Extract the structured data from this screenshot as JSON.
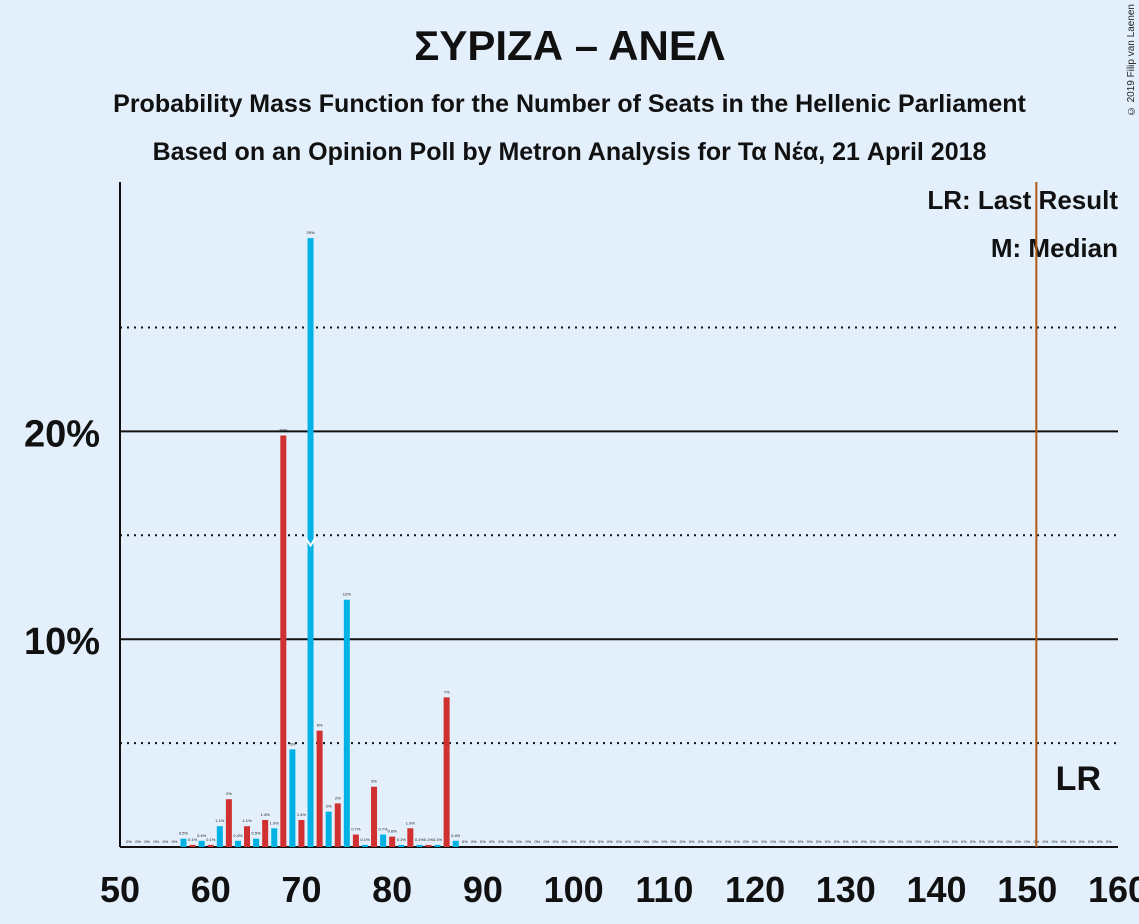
{
  "header": {
    "title": "ΣΥΡΙΖΑ – ΑΝΕΛ",
    "subtitle1": "Probability Mass Function for the Number of Seats in the Hellenic Parliament",
    "subtitle2": "Based on an Opinion Poll by Metron Analysis for Τα Νέα, 21 April 2018",
    "copyright": "© 2019 Filip van Laenen"
  },
  "legend": {
    "last_result": "LR: Last Result",
    "median": "M: Median",
    "lr_marker": "LR"
  },
  "colors": {
    "background": "#e3f0fc",
    "series_a": "#00b2e3",
    "series_b": "#d03030",
    "last_result_line": "#b05a10"
  },
  "chart_data": {
    "type": "bar",
    "xlim": [
      50,
      160
    ],
    "ylim": [
      0,
      32
    ],
    "x_ticks": [
      50,
      60,
      70,
      80,
      90,
      100,
      110,
      120,
      130,
      140,
      150,
      160
    ],
    "y_major": [
      10,
      20
    ],
    "y_tick_labels": [
      "10%",
      "20%"
    ],
    "y_minor_dotted": [
      5,
      15,
      25
    ],
    "last_result": 151,
    "median": 71,
    "median_marker_y": 14.5,
    "x_tick_label_suffix": "",
    "bars": [
      {
        "x": 51,
        "v": 0,
        "label": "0%"
      },
      {
        "x": 52,
        "v": 0,
        "label": "0%"
      },
      {
        "x": 53,
        "v": 0,
        "label": "0%"
      },
      {
        "x": 54,
        "v": 0,
        "label": "0%"
      },
      {
        "x": 55,
        "v": 0,
        "label": "0%"
      },
      {
        "x": 56,
        "v": 0,
        "label": "0%"
      },
      {
        "x": 57,
        "v": 0.4,
        "label": "0.5%"
      },
      {
        "x": 58,
        "v": 0.1,
        "label": "0.1%"
      },
      {
        "x": 59,
        "v": 0.3,
        "label": "0.4%"
      },
      {
        "x": 60,
        "v": 0.1,
        "label": "0.1%"
      },
      {
        "x": 61,
        "v": 1.0,
        "label": "1.1%"
      },
      {
        "x": 62,
        "v": 2.3,
        "label": "2%"
      },
      {
        "x": 63,
        "v": 0.3,
        "label": "0.4%"
      },
      {
        "x": 64,
        "v": 1.0,
        "label": "1.1%"
      },
      {
        "x": 65,
        "v": 0.4,
        "label": "0.5%"
      },
      {
        "x": 66,
        "v": 1.3,
        "label": "1.4%"
      },
      {
        "x": 67,
        "v": 0.9,
        "label": "1.0%"
      },
      {
        "x": 68,
        "v": 19.8,
        "label": "20%"
      },
      {
        "x": 69,
        "v": 4.7,
        "label": "5%"
      },
      {
        "x": 70,
        "v": 1.3,
        "label": "1.4%"
      },
      {
        "x": 71,
        "v": 29.3,
        "label": "29%"
      },
      {
        "x": 72,
        "v": 5.6,
        "label": "6%"
      },
      {
        "x": 73,
        "v": 1.7,
        "label": "2%"
      },
      {
        "x": 74,
        "v": 2.1,
        "label": "2%"
      },
      {
        "x": 75,
        "v": 11.9,
        "label": "12%"
      },
      {
        "x": 76,
        "v": 0.6,
        "label": "0.7%"
      },
      {
        "x": 77,
        "v": 0.1,
        "label": "0.1%"
      },
      {
        "x": 78,
        "v": 2.9,
        "label": "3%"
      },
      {
        "x": 79,
        "v": 0.6,
        "label": "0.7%"
      },
      {
        "x": 80,
        "v": 0.5,
        "label": "0.6%"
      },
      {
        "x": 81,
        "v": 0.1,
        "label": "0.1%"
      },
      {
        "x": 82,
        "v": 0.9,
        "label": "1.0%"
      },
      {
        "x": 83,
        "v": 0.1,
        "label": "0.1%"
      },
      {
        "x": 84,
        "v": 0.1,
        "label": "0.1%"
      },
      {
        "x": 85,
        "v": 0.1,
        "label": "0.1%"
      },
      {
        "x": 86,
        "v": 7.2,
        "label": "7%"
      },
      {
        "x": 87,
        "v": 0.3,
        "label": "0.4%"
      },
      {
        "x": 88,
        "v": 0,
        "label": "0%"
      },
      {
        "x": 89,
        "v": 0,
        "label": "0%"
      },
      {
        "x": 90,
        "v": 0,
        "label": "0%"
      },
      {
        "x": 91,
        "v": 0,
        "label": "0%"
      },
      {
        "x": 92,
        "v": 0,
        "label": "0%"
      },
      {
        "x": 93,
        "v": 0,
        "label": "0%"
      },
      {
        "x": 94,
        "v": 0,
        "label": "0%"
      },
      {
        "x": 95,
        "v": 0,
        "label": "0%"
      },
      {
        "x": 96,
        "v": 0,
        "label": "0%"
      },
      {
        "x": 97,
        "v": 0,
        "label": "0%"
      },
      {
        "x": 98,
        "v": 0,
        "label": "0%"
      },
      {
        "x": 99,
        "v": 0,
        "label": "0%"
      },
      {
        "x": 100,
        "v": 0,
        "label": "0%"
      },
      {
        "x": 101,
        "v": 0,
        "label": "0%"
      },
      {
        "x": 102,
        "v": 0,
        "label": "0%"
      },
      {
        "x": 103,
        "v": 0,
        "label": "0%"
      },
      {
        "x": 104,
        "v": 0,
        "label": "0%"
      },
      {
        "x": 105,
        "v": 0,
        "label": "0%"
      },
      {
        "x": 106,
        "v": 0,
        "label": "0%"
      },
      {
        "x": 107,
        "v": 0,
        "label": "0%"
      },
      {
        "x": 108,
        "v": 0,
        "label": "0%"
      },
      {
        "x": 109,
        "v": 0,
        "label": "0%"
      },
      {
        "x": 110,
        "v": 0,
        "label": "0%"
      },
      {
        "x": 111,
        "v": 0,
        "label": "0%"
      },
      {
        "x": 112,
        "v": 0,
        "label": "0%"
      },
      {
        "x": 113,
        "v": 0,
        "label": "0%"
      },
      {
        "x": 114,
        "v": 0,
        "label": "0%"
      },
      {
        "x": 115,
        "v": 0,
        "label": "0%"
      },
      {
        "x": 116,
        "v": 0,
        "label": "0%"
      },
      {
        "x": 117,
        "v": 0,
        "label": "0%"
      },
      {
        "x": 118,
        "v": 0,
        "label": "0%"
      },
      {
        "x": 119,
        "v": 0,
        "label": "0%"
      },
      {
        "x": 120,
        "v": 0,
        "label": "0%"
      },
      {
        "x": 121,
        "v": 0,
        "label": "0%"
      },
      {
        "x": 122,
        "v": 0,
        "label": "0%"
      },
      {
        "x": 123,
        "v": 0,
        "label": "0%"
      },
      {
        "x": 124,
        "v": 0,
        "label": "0%"
      },
      {
        "x": 125,
        "v": 0,
        "label": "0%"
      },
      {
        "x": 126,
        "v": 0,
        "label": "0%"
      },
      {
        "x": 127,
        "v": 0,
        "label": "0%"
      },
      {
        "x": 128,
        "v": 0,
        "label": "0%"
      },
      {
        "x": 129,
        "v": 0,
        "label": "0%"
      },
      {
        "x": 130,
        "v": 0,
        "label": "0%"
      },
      {
        "x": 131,
        "v": 0,
        "label": "0%"
      },
      {
        "x": 132,
        "v": 0,
        "label": "0%"
      },
      {
        "x": 133,
        "v": 0,
        "label": "0%"
      },
      {
        "x": 134,
        "v": 0,
        "label": "0%"
      },
      {
        "x": 135,
        "v": 0,
        "label": "0%"
      },
      {
        "x": 136,
        "v": 0,
        "label": "0%"
      },
      {
        "x": 137,
        "v": 0,
        "label": "0%"
      },
      {
        "x": 138,
        "v": 0,
        "label": "0%"
      },
      {
        "x": 139,
        "v": 0,
        "label": "0%"
      },
      {
        "x": 140,
        "v": 0,
        "label": "0%"
      },
      {
        "x": 141,
        "v": 0,
        "label": "0%"
      },
      {
        "x": 142,
        "v": 0,
        "label": "0%"
      },
      {
        "x": 143,
        "v": 0,
        "label": "0%"
      },
      {
        "x": 144,
        "v": 0,
        "label": "0%"
      },
      {
        "x": 145,
        "v": 0,
        "label": "0%"
      },
      {
        "x": 146,
        "v": 0,
        "label": "0%"
      },
      {
        "x": 147,
        "v": 0,
        "label": "0%"
      },
      {
        "x": 148,
        "v": 0,
        "label": "0%"
      },
      {
        "x": 149,
        "v": 0,
        "label": "0%"
      },
      {
        "x": 150,
        "v": 0,
        "label": "0%"
      },
      {
        "x": 151,
        "v": 0,
        "label": "0%"
      },
      {
        "x": 152,
        "v": 0,
        "label": "0%"
      },
      {
        "x": 153,
        "v": 0,
        "label": "0%"
      },
      {
        "x": 154,
        "v": 0,
        "label": "0%"
      },
      {
        "x": 155,
        "v": 0,
        "label": "0%"
      },
      {
        "x": 156,
        "v": 0,
        "label": "0%"
      },
      {
        "x": 157,
        "v": 0,
        "label": "0%"
      },
      {
        "x": 158,
        "v": 0,
        "label": "0%"
      },
      {
        "x": 159,
        "v": 0,
        "label": "0%"
      }
    ]
  }
}
